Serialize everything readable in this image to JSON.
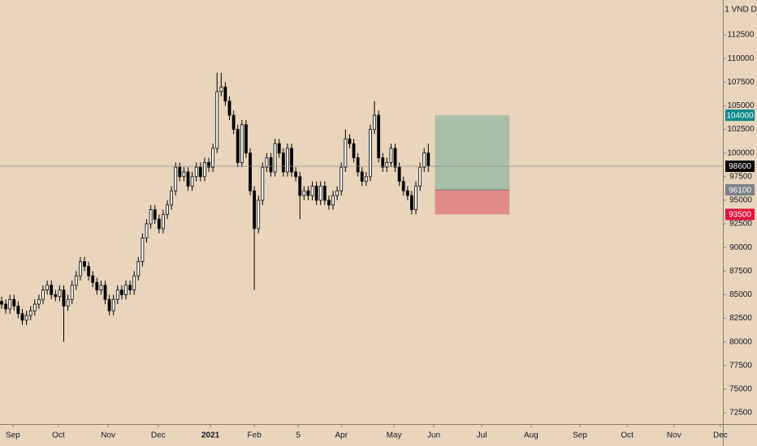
{
  "chart_data": {
    "type": "candlestick",
    "currency_label": "1 VND D",
    "ylim": [
      70700,
      116200
    ],
    "yticks": [
      72500,
      75000,
      77500,
      80000,
      82500,
      85000,
      87500,
      90000,
      92500,
      95000,
      97500,
      100000,
      102500,
      105000,
      107500,
      110000,
      112500
    ],
    "xlim": [
      0,
      174.5
    ],
    "xticks": [
      {
        "value": 3.1,
        "label": "Sep"
      },
      {
        "value": 14.1,
        "label": "Oct"
      },
      {
        "value": 26.1,
        "label": "Nov"
      },
      {
        "value": 38.2,
        "label": "Dec"
      },
      {
        "value": 50.8,
        "label": "2021"
      },
      {
        "value": 61.4,
        "label": "Feb"
      },
      {
        "value": 72,
        "label": "5"
      },
      {
        "value": 82.4,
        "label": "Apr"
      },
      {
        "value": 95.1,
        "label": "May"
      },
      {
        "value": 104.7,
        "label": "Jun"
      },
      {
        "value": 116.3,
        "label": "Jul"
      },
      {
        "value": 128.2,
        "label": "Aug"
      },
      {
        "value": 140,
        "label": "Sep"
      },
      {
        "value": 151.4,
        "label": "Oct"
      },
      {
        "value": 162.7,
        "label": "Nov"
      },
      {
        "value": 173.9,
        "label": "Dec"
      }
    ],
    "up_color": "#ffffff",
    "down_color": "#000000",
    "open": [
      84300,
      84000,
      83500,
      84500,
      83800,
      83000,
      82300,
      82800,
      83300,
      84000,
      84500,
      85500,
      86000,
      85000,
      84800,
      85500,
      83800,
      84500,
      86000,
      87000,
      88500,
      88000,
      87000,
      86300,
      85500,
      86000,
      84500,
      83300,
      84500,
      85500,
      85000,
      86000,
      85500,
      87000,
      88500,
      91000,
      92500,
      94000,
      93000,
      92000,
      93500,
      94500,
      96000,
      98500,
      97500,
      98000,
      96500,
      97500,
      98500,
      97500,
      99000,
      98500,
      100500,
      106500,
      107000,
      105500,
      104000,
      102500,
      99000,
      103000,
      100000,
      96000,
      92000,
      95000,
      98500,
      99500,
      98000,
      101000,
      100000,
      98000,
      100500,
      98000,
      97500,
      95500,
      96000,
      95500,
      96500,
      95000,
      96500,
      95000,
      94500,
      95500,
      96000,
      98500,
      101500,
      101000,
      99500,
      98000,
      97000,
      97500,
      102500,
      104000,
      99500,
      98500,
      99000,
      100500,
      98500,
      97000,
      96000,
      95500,
      94000,
      96500,
      98500,
      100000
    ],
    "high": [
      84800,
      84500,
      85000,
      85000,
      84300,
      83500,
      83300,
      83800,
      84500,
      85000,
      86000,
      86500,
      86500,
      85500,
      86000,
      86000,
      85000,
      86500,
      87500,
      89000,
      89000,
      88500,
      87500,
      86800,
      86500,
      86500,
      85000,
      85000,
      86000,
      86000,
      86500,
      86500,
      87500,
      89000,
      91500,
      93000,
      94500,
      94500,
      93500,
      94000,
      95000,
      96500,
      99000,
      99000,
      98500,
      98500,
      98000,
      99000,
      99000,
      99500,
      99500,
      101000,
      108500,
      108500,
      107500,
      106000,
      104500,
      103000,
      103500,
      103500,
      100500,
      96500,
      95500,
      99000,
      100000,
      100000,
      101500,
      101500,
      100500,
      101000,
      101000,
      98500,
      98000,
      96500,
      96500,
      97000,
      97000,
      97000,
      97000,
      95500,
      96000,
      96500,
      99000,
      102500,
      102000,
      101500,
      100000,
      98500,
      98000,
      103000,
      105500,
      104500,
      100000,
      99500,
      101000,
      101000,
      99000,
      97500,
      96500,
      96000,
      97000,
      99000,
      100500,
      101000
    ],
    "low": [
      83500,
      83000,
      83000,
      83300,
      82500,
      81800,
      81800,
      82300,
      82800,
      83500,
      84000,
      85000,
      84500,
      84300,
      84300,
      80000,
      83300,
      84000,
      85500,
      86500,
      87500,
      86500,
      85800,
      85000,
      85000,
      84000,
      82800,
      82800,
      84000,
      84500,
      84500,
      85000,
      85000,
      86500,
      88000,
      90500,
      92000,
      92500,
      91500,
      91500,
      93000,
      94000,
      95500,
      97000,
      97000,
      96000,
      96000,
      97000,
      97000,
      97000,
      98000,
      98000,
      100000,
      106000,
      105000,
      103500,
      102000,
      98500,
      98500,
      99500,
      95500,
      85500,
      91500,
      94500,
      98000,
      97500,
      97500,
      99500,
      97500,
      97500,
      97500,
      97000,
      93000,
      95000,
      95000,
      95000,
      94500,
      94500,
      94500,
      94000,
      94000,
      95000,
      95500,
      98000,
      100500,
      99000,
      97500,
      96500,
      96500,
      97000,
      102000,
      99000,
      98000,
      98000,
      98500,
      98000,
      96500,
      95500,
      95000,
      93500,
      93500,
      96000,
      98000,
      98000
    ],
    "close": [
      84000,
      83500,
      84500,
      83800,
      83000,
      82300,
      82800,
      83300,
      84000,
      84500,
      85500,
      86000,
      85000,
      84800,
      85500,
      83800,
      84500,
      86000,
      87000,
      88500,
      88000,
      87000,
      86300,
      85500,
      86000,
      84500,
      83300,
      84500,
      85500,
      85000,
      86000,
      85500,
      87000,
      88500,
      91000,
      92500,
      94000,
      93000,
      92000,
      93500,
      94500,
      96000,
      98500,
      97500,
      98000,
      96500,
      97500,
      98500,
      97500,
      99000,
      98500,
      100500,
      106500,
      107000,
      105500,
      104000,
      102500,
      99000,
      103000,
      100000,
      96000,
      92000,
      95000,
      98500,
      99500,
      98000,
      101000,
      100000,
      98000,
      100500,
      98000,
      97500,
      95500,
      96000,
      95500,
      96500,
      95000,
      96500,
      95000,
      94500,
      95500,
      96000,
      98500,
      101500,
      101000,
      99500,
      98000,
      97000,
      97500,
      102500,
      104000,
      99500,
      98500,
      99000,
      100500,
      98500,
      97000,
      96000,
      95500,
      94000,
      96500,
      98500,
      100000,
      98600
    ],
    "last_price": 98600,
    "position": {
      "start": 105,
      "end": 123,
      "target": 104000,
      "entry": 96100,
      "stop": 93500,
      "profit_color": "#a9bfa9",
      "loss_color": "#e08a8c",
      "target_color": "#0b8a8a",
      "entry_color": "#7d8187",
      "stop_color": "#e0143c"
    }
  }
}
